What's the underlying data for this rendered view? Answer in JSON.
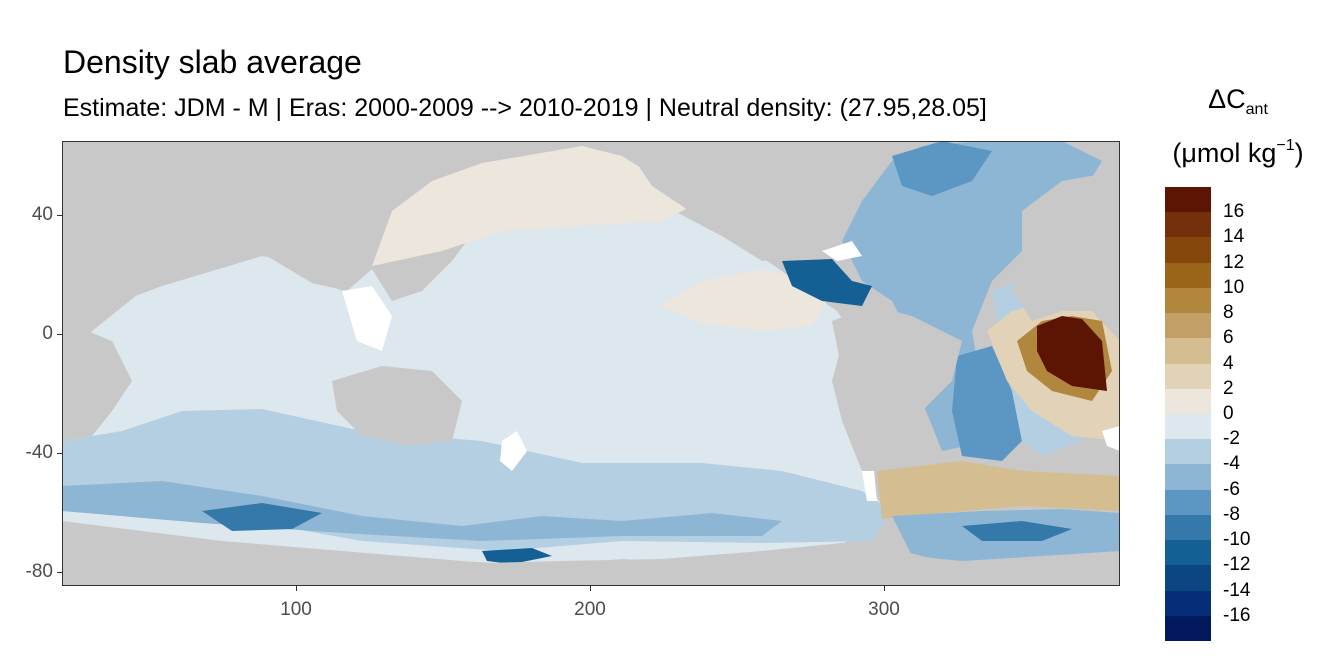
{
  "title": "Density slab average",
  "subtitle": "Estimate: JDM - M | Eras: 2000-2009 --> 2010-2019 | Neutral density: (27.95,28.05]",
  "legend": {
    "title_main": "ΔC",
    "title_sub": "ant",
    "unit_prefix": "(μmol kg",
    "unit_sup": "−1",
    "unit_suffix": ")",
    "bins": [
      {
        "label": "16",
        "color": "#5c1405"
      },
      {
        "label": "14",
        "color": "#74300a"
      },
      {
        "label": "12",
        "color": "#86470d"
      },
      {
        "label": "10",
        "color": "#9a6518"
      },
      {
        "label": "8",
        "color": "#b0873c"
      },
      {
        "label": "6",
        "color": "#c2a067"
      },
      {
        "label": "4",
        "color": "#d3bd91"
      },
      {
        "label": "2",
        "color": "#e2d3b8"
      },
      {
        "label": "0",
        "color": "#ece6dc"
      },
      {
        "label": "-2",
        "color": "#dde7ee"
      },
      {
        "label": "-4",
        "color": "#b5cfe2"
      },
      {
        "label": "-6",
        "color": "#8db6d5"
      },
      {
        "label": "-8",
        "color": "#5b97c2"
      },
      {
        "label": "-10",
        "color": "#3479aa"
      },
      {
        "label": "-12",
        "color": "#145f94"
      },
      {
        "label": "-14",
        "color": "#0b4683"
      },
      {
        "label": "-16",
        "color": "#062d77"
      },
      {
        "label": "",
        "color": "#03195e"
      }
    ]
  },
  "axes": {
    "y_ticks": [
      "40",
      "0",
      "-40",
      "-80"
    ],
    "x_ticks": [
      "100",
      "200",
      "300"
    ]
  },
  "map": {
    "land_color": "#c8c8c8",
    "nodata_color": "#ffffff",
    "lon_range": [
      20,
      380
    ],
    "lat_range": [
      -85,
      65
    ]
  }
}
